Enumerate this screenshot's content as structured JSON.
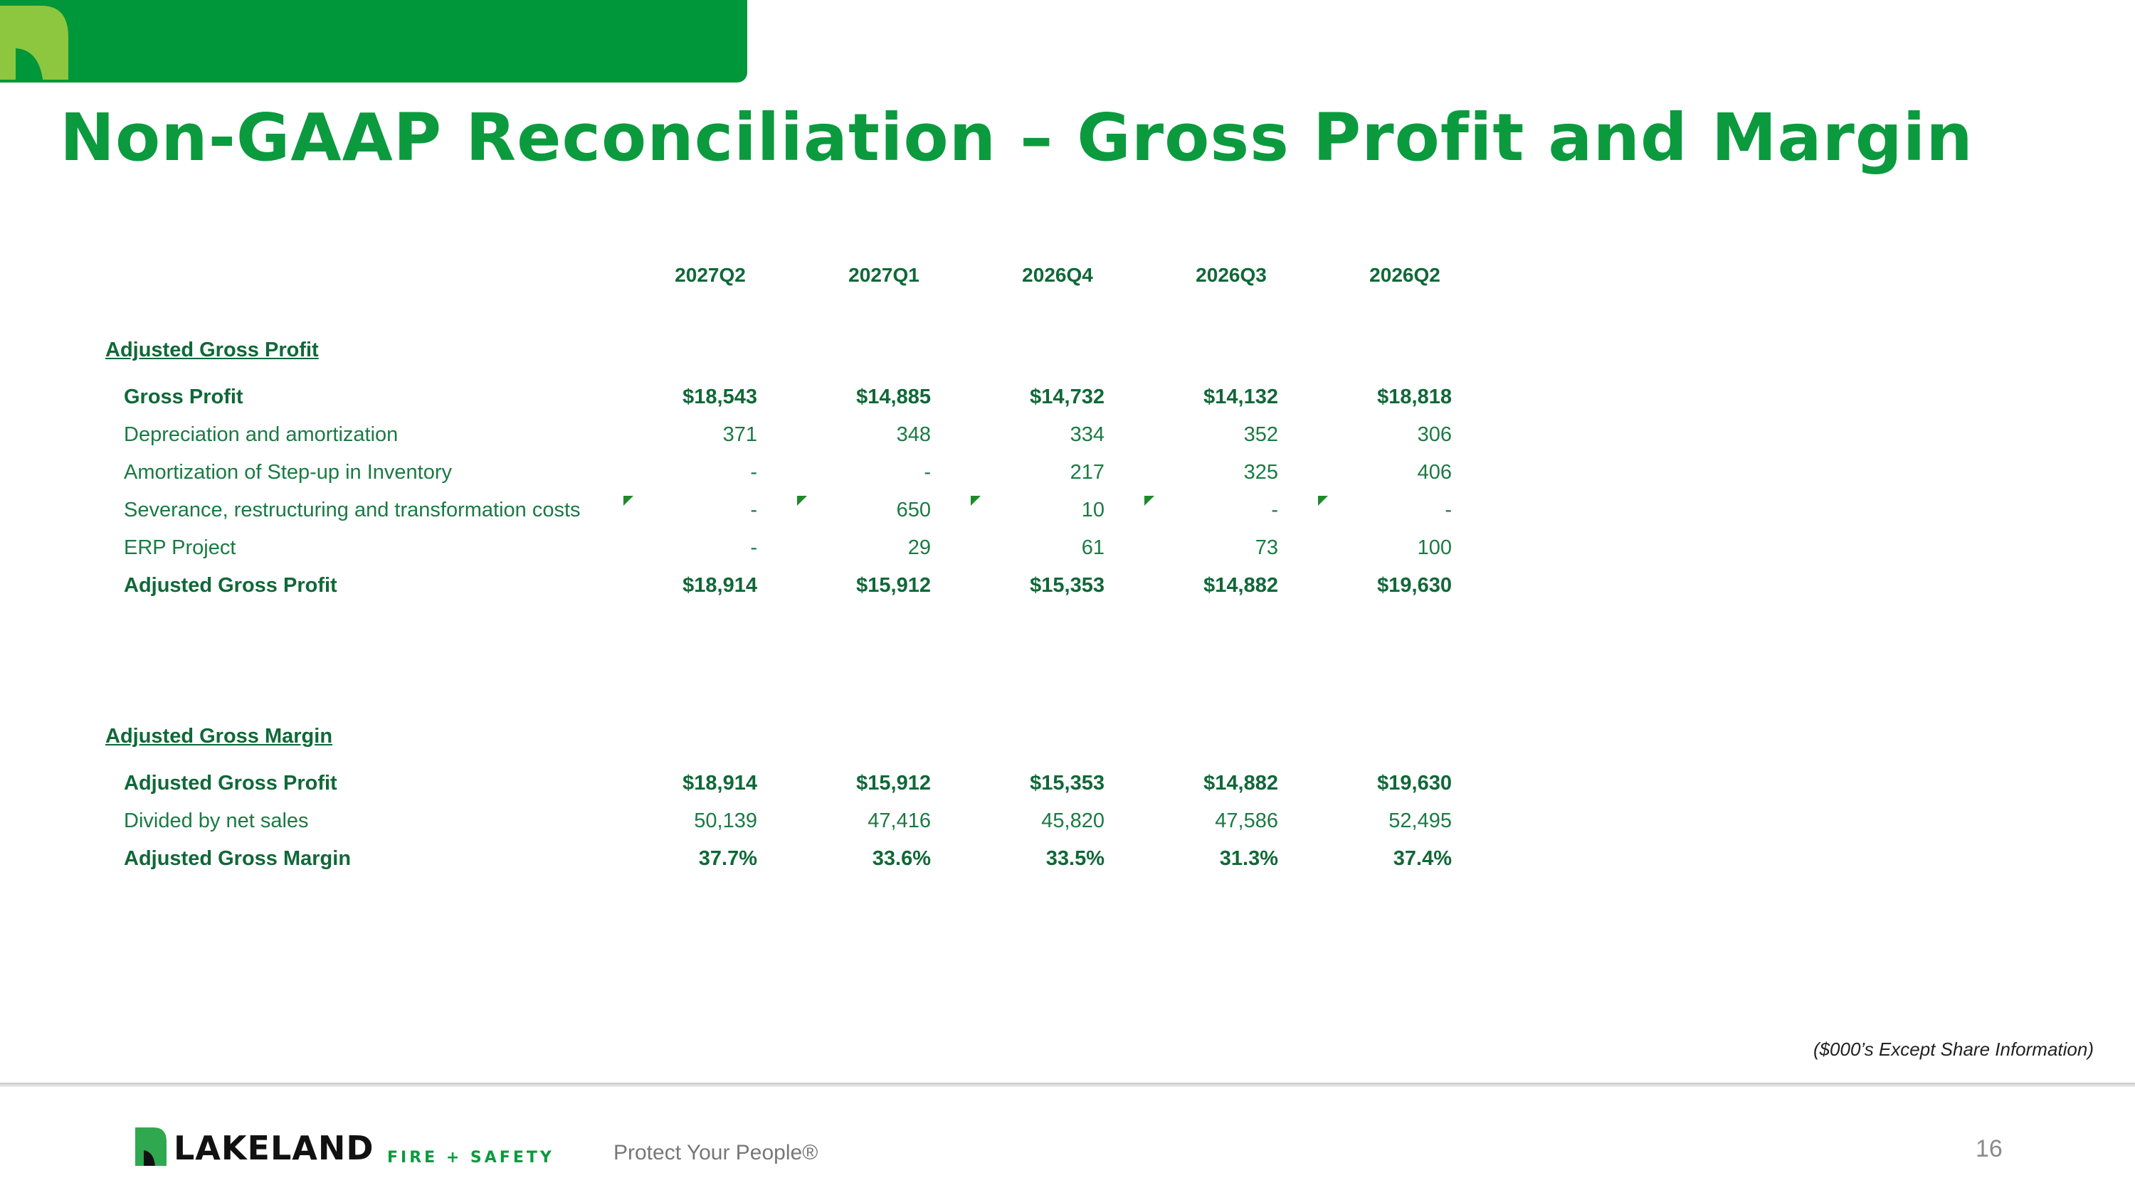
{
  "slide": {
    "title": "Non-GAAP Reconciliation – Gross Profit and Margin",
    "footnote": "($000’s Except Share Information)",
    "page_number": "16"
  },
  "footer": {
    "brand": "LAKELAND",
    "brand_sub": "FIRE + SAFETY",
    "tagline": "Protect Your People®"
  },
  "table": {
    "columns": [
      "2027Q2",
      "2027Q1",
      "2026Q4",
      "2026Q3",
      "2026Q2"
    ],
    "sections": [
      {
        "heading": "Adjusted Gross Profit",
        "rows": [
          {
            "label": "Gross Profit",
            "bold": true,
            "values": [
              "$18,543",
              "$14,885",
              "$14,732",
              "$14,132",
              "$18,818"
            ]
          },
          {
            "label": "Depreciation and amortization",
            "bold": false,
            "values": [
              "371",
              "348",
              "334",
              "352",
              "306"
            ]
          },
          {
            "label": "Amortization of Step-up in Inventory",
            "bold": false,
            "values": [
              "-",
              "-",
              "217",
              "325",
              "406"
            ]
          },
          {
            "label": "Severance, restructuring and transformation costs",
            "bold": false,
            "values": [
              "-",
              "650",
              "10",
              "-",
              "-"
            ]
          },
          {
            "label": "ERP Project",
            "bold": false,
            "values": [
              "-",
              "29",
              "61",
              "73",
              "100"
            ]
          },
          {
            "label": "Adjusted Gross Profit",
            "bold": true,
            "values": [
              "$18,914",
              "$15,912",
              "$15,353",
              "$14,882",
              "$19,630"
            ]
          }
        ]
      },
      {
        "heading": "Adjusted Gross Margin",
        "rows": [
          {
            "label": "Adjusted Gross Profit",
            "bold": true,
            "values": [
              "$18,914",
              "$15,912",
              "$15,353",
              "$14,882",
              "$19,630"
            ]
          },
          {
            "label": "Divided by net sales",
            "bold": false,
            "values": [
              "50,139",
              "47,416",
              "45,820",
              "47,586",
              "52,495"
            ]
          },
          {
            "label": "Adjusted Gross Margin",
            "bold": true,
            "values": [
              "37.7%",
              "33.6%",
              "33.5%",
              "31.3%",
              "37.4%"
            ]
          }
        ]
      }
    ]
  }
}
